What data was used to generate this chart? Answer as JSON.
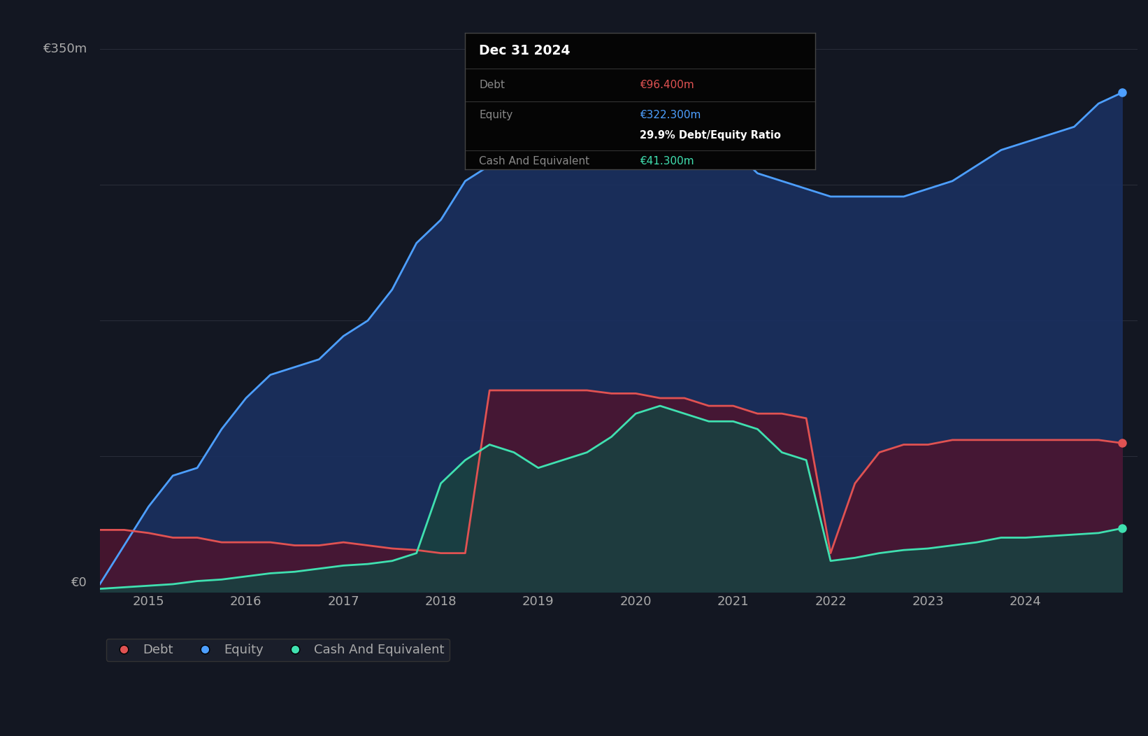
{
  "background_color": "#131722",
  "plot_bg_color": "#131722",
  "tooltip_title": "Dec 31 2024",
  "tooltip_debt_label": "Debt",
  "tooltip_debt_value": "€96.400m",
  "tooltip_equity_label": "Equity",
  "tooltip_equity_value": "€322.300m",
  "tooltip_ratio": "29.9% Debt/Equity Ratio",
  "tooltip_cash_label": "Cash And Equivalent",
  "tooltip_cash_value": "€41.300m",
  "debt_color": "#e05252",
  "equity_color": "#4d9fff",
  "cash_color": "#40e0b0",
  "grid_color": "#2a2e3a",
  "text_color_light": "#aaaaaa",
  "text_color_white": "#ffffff",
  "x_years": [
    2014.5,
    2014.75,
    2015.0,
    2015.25,
    2015.5,
    2015.75,
    2016.0,
    2016.25,
    2016.5,
    2016.75,
    2017.0,
    2017.25,
    2017.5,
    2017.75,
    2018.0,
    2018.25,
    2018.5,
    2018.75,
    2019.0,
    2019.25,
    2019.5,
    2019.75,
    2020.0,
    2020.25,
    2020.5,
    2020.75,
    2021.0,
    2021.25,
    2021.5,
    2021.75,
    2022.0,
    2022.25,
    2022.5,
    2022.75,
    2023.0,
    2023.25,
    2023.5,
    2023.75,
    2024.0,
    2024.25,
    2024.5,
    2024.75,
    2024.99
  ],
  "equity_values": [
    5,
    30,
    55,
    75,
    80,
    105,
    125,
    140,
    145,
    150,
    165,
    175,
    195,
    225,
    240,
    265,
    275,
    280,
    285,
    295,
    295,
    295,
    295,
    290,
    285,
    285,
    285,
    270,
    265,
    260,
    255,
    255,
    255,
    255,
    260,
    265,
    275,
    285,
    290,
    295,
    300,
    315,
    322
  ],
  "debt_values": [
    40,
    40,
    38,
    35,
    35,
    32,
    32,
    32,
    30,
    30,
    32,
    30,
    28,
    27,
    25,
    25,
    130,
    130,
    130,
    130,
    130,
    128,
    128,
    125,
    125,
    120,
    120,
    115,
    115,
    112,
    25,
    70,
    90,
    95,
    95,
    98,
    98,
    98,
    98,
    98,
    98,
    98,
    96
  ],
  "cash_values": [
    2,
    3,
    4,
    5,
    7,
    8,
    10,
    12,
    13,
    15,
    17,
    18,
    20,
    25,
    70,
    85,
    95,
    90,
    80,
    85,
    90,
    100,
    115,
    120,
    115,
    110,
    110,
    105,
    90,
    85,
    20,
    22,
    25,
    27,
    28,
    30,
    32,
    35,
    35,
    36,
    37,
    38,
    41
  ],
  "xlim": [
    2014.5,
    2025.15
  ],
  "ylim": [
    0,
    375
  ],
  "xticks": [
    2015,
    2016,
    2017,
    2018,
    2019,
    2020,
    2021,
    2022,
    2023,
    2024
  ],
  "xtick_labels": [
    "2015",
    "2016",
    "2017",
    "2018",
    "2019",
    "2020",
    "2021",
    "2022",
    "2023",
    "2024"
  ],
  "legend_items": [
    "Debt",
    "Equity",
    "Cash And Equivalent"
  ],
  "legend_colors": [
    "#e05252",
    "#4d9fff",
    "#40e0b0"
  ]
}
